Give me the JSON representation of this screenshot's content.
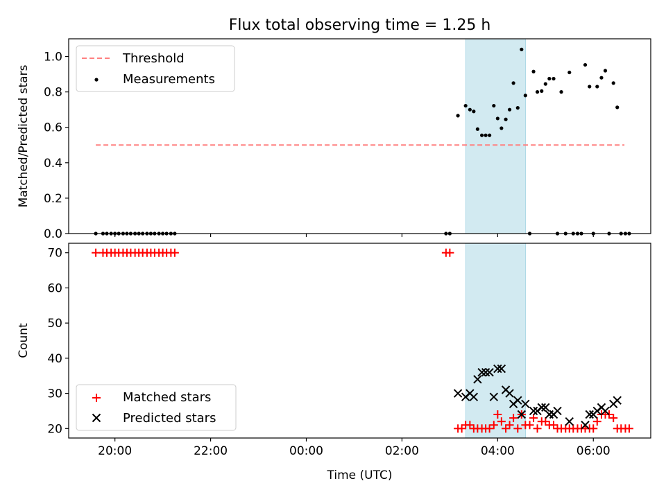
{
  "title": "Flux total observing time = 1.25 h",
  "chart_data": [
    {
      "type": "scatter",
      "ylabel": "Matched/Predicted stars",
      "xlabel": "",
      "xlim_hours": [
        19.033,
        31.2
      ],
      "ylim": [
        0,
        1.1
      ],
      "yticks": [
        0.0,
        0.2,
        0.4,
        0.6,
        0.8,
        1.0
      ],
      "ytick_labels": [
        "0.0",
        "0.2",
        "0.4",
        "0.6",
        "0.8",
        "1.0"
      ],
      "grid": false,
      "legend": "upper left",
      "threshold": {
        "name": "Threshold",
        "value": 0.5,
        "x_range": [
          19.6,
          30.65
        ],
        "color": "#ff8080"
      },
      "shaded_span": [
        27.333,
        28.583
      ],
      "series": [
        {
          "name": "Measurements",
          "color": "#000000",
          "points": [
            [
              19.6,
              0
            ],
            [
              19.75,
              0
            ],
            [
              19.83,
              0
            ],
            [
              19.92,
              0
            ],
            [
              20.0,
              0
            ],
            [
              20.08,
              0
            ],
            [
              20.17,
              0
            ],
            [
              20.25,
              0
            ],
            [
              20.33,
              0
            ],
            [
              20.42,
              0
            ],
            [
              20.5,
              0
            ],
            [
              20.58,
              0
            ],
            [
              20.67,
              0
            ],
            [
              20.75,
              0
            ],
            [
              20.83,
              0
            ],
            [
              20.92,
              0
            ],
            [
              21.0,
              0
            ],
            [
              21.08,
              0
            ],
            [
              21.17,
              0
            ],
            [
              21.25,
              0
            ],
            [
              26.92,
              0
            ],
            [
              27.0,
              0
            ],
            [
              27.17,
              0.666
            ],
            [
              27.33,
              0.722
            ],
            [
              27.42,
              0.7
            ],
            [
              27.5,
              0.69
            ],
            [
              27.58,
              0.59
            ],
            [
              27.67,
              0.555
            ],
            [
              27.75,
              0.555
            ],
            [
              27.83,
              0.555
            ],
            [
              27.92,
              0.722
            ],
            [
              28.0,
              0.65
            ],
            [
              28.08,
              0.595
            ],
            [
              28.17,
              0.645
            ],
            [
              28.25,
              0.7
            ],
            [
              28.33,
              0.85
            ],
            [
              28.42,
              0.71
            ],
            [
              28.5,
              1.04
            ],
            [
              28.58,
              0.78
            ],
            [
              28.67,
              0
            ],
            [
              28.75,
              0.915
            ],
            [
              28.83,
              0.8
            ],
            [
              28.92,
              0.805
            ],
            [
              29.0,
              0.845
            ],
            [
              29.08,
              0.875
            ],
            [
              29.17,
              0.875
            ],
            [
              29.25,
              0
            ],
            [
              29.33,
              0.8
            ],
            [
              29.42,
              0
            ],
            [
              29.5,
              0.91
            ],
            [
              29.58,
              0
            ],
            [
              29.67,
              0
            ],
            [
              29.75,
              0
            ],
            [
              29.83,
              0.953
            ],
            [
              29.92,
              0.83
            ],
            [
              30.0,
              0
            ],
            [
              30.08,
              0.83
            ],
            [
              30.17,
              0.88
            ],
            [
              30.25,
              0.92
            ],
            [
              30.33,
              0
            ],
            [
              30.42,
              0.85
            ],
            [
              30.5,
              0.713
            ],
            [
              30.58,
              0
            ],
            [
              30.67,
              0
            ],
            [
              30.75,
              0
            ]
          ]
        }
      ]
    },
    {
      "type": "scatter",
      "ylabel": "Count",
      "xlabel": "Time (UTC)",
      "xlim_hours": [
        19.033,
        31.2
      ],
      "ylim": [
        17.3,
        72.7
      ],
      "yticks": [
        20,
        30,
        40,
        50,
        60,
        70
      ],
      "ytick_labels": [
        "20",
        "30",
        "40",
        "50",
        "60",
        "70"
      ],
      "xticks_hours": [
        20,
        22,
        24,
        26,
        28,
        30
      ],
      "xtick_labels": [
        "20:00",
        "22:00",
        "00:00",
        "02:00",
        "04:00",
        "06:00"
      ],
      "grid": false,
      "legend": "lower left",
      "shaded_span": [
        27.333,
        28.583
      ],
      "series": [
        {
          "name": "Matched stars",
          "color": "#ff0000",
          "marker": "plus",
          "points": [
            [
              19.6,
              70
            ],
            [
              19.75,
              70
            ],
            [
              19.83,
              70
            ],
            [
              19.92,
              70
            ],
            [
              20.0,
              70
            ],
            [
              20.08,
              70
            ],
            [
              20.17,
              70
            ],
            [
              20.25,
              70
            ],
            [
              20.33,
              70
            ],
            [
              20.42,
              70
            ],
            [
              20.5,
              70
            ],
            [
              20.58,
              70
            ],
            [
              20.67,
              70
            ],
            [
              20.75,
              70
            ],
            [
              20.83,
              70
            ],
            [
              20.92,
              70
            ],
            [
              21.0,
              70
            ],
            [
              21.08,
              70
            ],
            [
              21.17,
              70
            ],
            [
              21.25,
              70
            ],
            [
              26.92,
              70
            ],
            [
              27.0,
              70
            ],
            [
              27.17,
              20
            ],
            [
              27.25,
              20
            ],
            [
              27.33,
              21
            ],
            [
              27.42,
              21
            ],
            [
              27.5,
              20
            ],
            [
              27.58,
              20
            ],
            [
              27.67,
              20
            ],
            [
              27.75,
              20
            ],
            [
              27.83,
              20
            ],
            [
              27.92,
              21
            ],
            [
              28.0,
              24
            ],
            [
              28.08,
              22
            ],
            [
              28.17,
              20
            ],
            [
              28.25,
              21
            ],
            [
              28.33,
              23
            ],
            [
              28.42,
              20
            ],
            [
              28.5,
              24
            ],
            [
              28.58,
              21
            ],
            [
              28.67,
              21
            ],
            [
              28.75,
              23
            ],
            [
              28.83,
              20
            ],
            [
              28.92,
              22
            ],
            [
              29.0,
              22
            ],
            [
              29.08,
              21
            ],
            [
              29.17,
              21
            ],
            [
              29.25,
              20
            ],
            [
              29.33,
              20
            ],
            [
              29.42,
              20
            ],
            [
              29.5,
              20
            ],
            [
              29.58,
              20
            ],
            [
              29.67,
              20
            ],
            [
              29.75,
              20
            ],
            [
              29.83,
              20
            ],
            [
              29.92,
              20
            ],
            [
              30.0,
              20
            ],
            [
              30.08,
              22
            ],
            [
              30.17,
              24
            ],
            [
              30.25,
              24
            ],
            [
              30.33,
              24
            ],
            [
              30.42,
              23
            ],
            [
              30.5,
              20
            ],
            [
              30.58,
              20
            ],
            [
              30.67,
              20
            ],
            [
              30.75,
              20
            ]
          ]
        },
        {
          "name": "Predicted stars",
          "color": "#000000",
          "marker": "x",
          "points": [
            [
              27.17,
              30
            ],
            [
              27.33,
              29
            ],
            [
              27.42,
              30
            ],
            [
              27.5,
              29
            ],
            [
              27.58,
              34
            ],
            [
              27.67,
              36
            ],
            [
              27.75,
              36
            ],
            [
              27.83,
              36
            ],
            [
              27.92,
              29
            ],
            [
              28.0,
              37
            ],
            [
              28.08,
              37
            ],
            [
              28.17,
              31
            ],
            [
              28.25,
              30
            ],
            [
              28.33,
              27
            ],
            [
              28.42,
              28
            ],
            [
              28.5,
              24
            ],
            [
              28.58,
              27
            ],
            [
              28.75,
              25
            ],
            [
              28.83,
              25
            ],
            [
              28.92,
              26
            ],
            [
              29.0,
              26
            ],
            [
              29.08,
              24
            ],
            [
              29.17,
              24
            ],
            [
              29.25,
              25
            ],
            [
              29.5,
              22
            ],
            [
              29.83,
              21
            ],
            [
              29.92,
              24
            ],
            [
              30.0,
              24
            ],
            [
              30.08,
              25
            ],
            [
              30.17,
              26
            ],
            [
              30.25,
              25
            ],
            [
              30.42,
              27
            ],
            [
              30.5,
              28
            ]
          ]
        }
      ]
    }
  ]
}
